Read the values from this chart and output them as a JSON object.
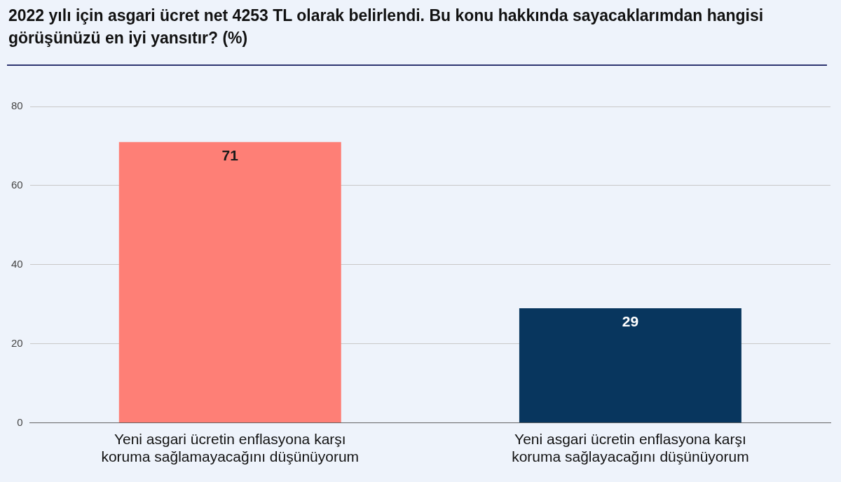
{
  "chart_data": {
    "type": "bar",
    "title": "2022 yılı için asgari ücret net 4253 TL olarak belirlendi. Bu konu hakkında sayacaklarımdan hangisi görüşünüzü en iyi yansıtır? (%)",
    "categories": [
      "Yeni asgari ücretin enflasyona karşı koruma sağlamayacağını düşünüyorum",
      "Yeni asgari ücretin enflasyona karşı koruma sağlayacağını düşünüyorum"
    ],
    "values": [
      71,
      29
    ],
    "colors": [
      "#fe7f76",
      "#08365e"
    ],
    "ylim": [
      0,
      80
    ],
    "yticks": [
      0,
      20,
      40,
      60,
      80
    ],
    "grid": "y",
    "data_labels": true,
    "legend": false
  }
}
